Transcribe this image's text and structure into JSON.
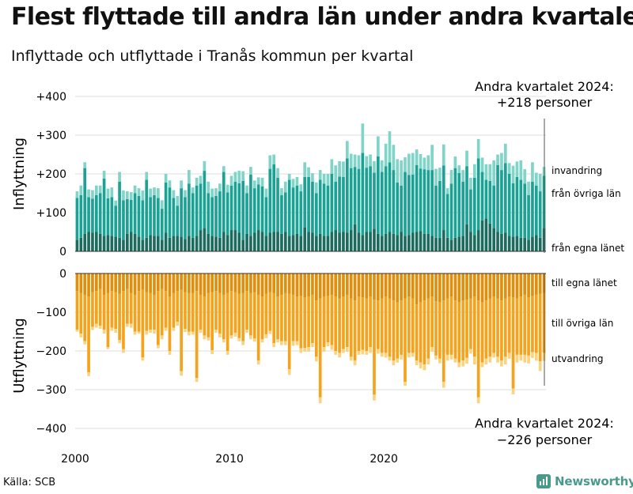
{
  "header": {
    "title": "Flest flyttade till andra län under andra kvartalet",
    "subtitle": "Inflyttade och utflyttade i Tranås kommun per kvartal"
  },
  "footer": {
    "source": "Källa: SCB",
    "brand": "Newsworthy",
    "brand_icon": "newsworthy-logo-icon"
  },
  "colors": {
    "in_egna": "#1b6b5e",
    "in_ovriga": "#1aa394",
    "in_invandring": "#80d4c8",
    "ut_egna": "#e08e0b",
    "ut_ovriga": "#f5a31c",
    "ut_utvandring": "#fbd37d",
    "grid": "#dddddd",
    "axis": "#333333"
  },
  "chart_data": [
    {
      "type": "bar",
      "stacked": true,
      "panel": "inflyttning",
      "ylabel": "Inflyttning",
      "ylim": [
        0,
        420
      ],
      "yticks": [
        0,
        100,
        200,
        300,
        400
      ],
      "ytick_labels": [
        "0",
        "+100",
        "+200",
        "+300",
        "+400"
      ],
      "xticks": [
        "2000",
        "2010",
        "2020"
      ],
      "grid": true,
      "annotation": {
        "line1": "Andra kvartalet 2024:",
        "line2": "+218 personer"
      },
      "series": [
        {
          "name": "från egna länet",
          "values": [
            30,
            35,
            45,
            50,
            48,
            50,
            45,
            40,
            42,
            40,
            38,
            35,
            30,
            45,
            50,
            45,
            38,
            30,
            35,
            42,
            40,
            40,
            30,
            48,
            35,
            40,
            40,
            38,
            32,
            40,
            35,
            40,
            55,
            60,
            45,
            40,
            38,
            35,
            50,
            42,
            55,
            55,
            48,
            30,
            45,
            40,
            48,
            55,
            50,
            40,
            48,
            50,
            50,
            45,
            50,
            40,
            42,
            45,
            40,
            62,
            50,
            48,
            40,
            45,
            40,
            40,
            50,
            55,
            48,
            50,
            48,
            55,
            70,
            48,
            42,
            50,
            50,
            58,
            45,
            40,
            45,
            50,
            45,
            42,
            50,
            40,
            42,
            48,
            50,
            52,
            45,
            45,
            40,
            35,
            35,
            55,
            35,
            30,
            35,
            38,
            40,
            70,
            50,
            42,
            55,
            80,
            85,
            72,
            60,
            50,
            45,
            48,
            40,
            38,
            40,
            35,
            35,
            30,
            38,
            42,
            35,
            60
          ]
        },
        {
          "name": "från övriga län",
          "values": [
            108,
            110,
            170,
            90,
            88,
            95,
            105,
            148,
            95,
            100,
            80,
            145,
            102,
            90,
            83,
            105,
            105,
            102,
            150,
            98,
            105,
            98,
            80,
            130,
            130,
            98,
            78,
            125,
            108,
            135,
            115,
            130,
            120,
            148,
            105,
            100,
            105,
            120,
            155,
            110,
            115,
            125,
            128,
            152,
            105,
            158,
            115,
            118,
            118,
            100,
            165,
            175,
            140,
            100,
            102,
            145,
            123,
            125,
            115,
            130,
            142,
            132,
            110,
            140,
            135,
            130,
            150,
            125,
            145,
            142,
            192,
            160,
            148,
            165,
            212,
            166,
            170,
            145,
            200,
            165,
            175,
            180,
            165,
            136,
            120,
            165,
            155,
            150,
            173,
            162,
            167,
            165,
            170,
            135,
            147,
            167,
            113,
            145,
            180,
            164,
            140,
            150,
            110,
            148,
            185,
            125,
            100,
            110,
            110,
            173,
            165,
            180,
            160,
            138,
            152,
            150,
            140,
            115,
            142,
            128,
            120,
            135
          ]
        },
        {
          "name": "invandring",
          "values": [
            17,
            25,
            15,
            20,
            22,
            25,
            20,
            20,
            25,
            25,
            13,
            25,
            25,
            20,
            20,
            20,
            20,
            25,
            20,
            22,
            20,
            25,
            22,
            22,
            18,
            20,
            25,
            20,
            18,
            35,
            15,
            20,
            20,
            25,
            30,
            22,
            20,
            20,
            15,
            20,
            25,
            25,
            32,
            25,
            20,
            20,
            20,
            18,
            22,
            22,
            35,
            25,
            25,
            18,
            28,
            15,
            22,
            22,
            18,
            38,
            25,
            22,
            28,
            25,
            25,
            30,
            38,
            42,
            40,
            40,
            45,
            37,
            32,
            35,
            76,
            30,
            30,
            30,
            52,
            30,
            58,
            80,
            65,
            60,
            65,
            38,
            55,
            56,
            40,
            37,
            30,
            38,
            65,
            43,
            34,
            54,
            15,
            35,
            30,
            20,
            30,
            40,
            30,
            35,
            50,
            37,
            40,
            43,
            65,
            27,
            44,
            50,
            28,
            45,
            40,
            50,
            37,
            35,
            50,
            33,
            45,
            23
          ]
        }
      ]
    },
    {
      "type": "bar",
      "stacked": true,
      "panel": "utflyttning",
      "ylabel": "Utflyttning",
      "ylim": [
        -420,
        0
      ],
      "yticks": [
        0,
        -100,
        -200,
        -300,
        -400
      ],
      "ytick_labels": [
        "0",
        "−100",
        "−200",
        "−300",
        "−400"
      ],
      "xticks": [
        "2000",
        "2010",
        "2020"
      ],
      "grid": true,
      "annotation": {
        "line1": "Andra kvartalet 2024:",
        "line2": "−226 personer"
      },
      "series": [
        {
          "name": "till egna länet",
          "values": [
            -45,
            -50,
            -55,
            -60,
            -48,
            -45,
            -40,
            -55,
            -50,
            -45,
            -48,
            -52,
            -45,
            -40,
            -50,
            -55,
            -45,
            -42,
            -48,
            -50,
            -55,
            -45,
            -40,
            -45,
            -60,
            -50,
            -45,
            -42,
            -48,
            -50,
            -50,
            -45,
            -55,
            -60,
            -50,
            -48,
            -45,
            -50,
            -55,
            -50,
            -45,
            -48,
            -52,
            -50,
            -45,
            -50,
            -48,
            -55,
            -60,
            -52,
            -48,
            -50,
            -60,
            -55,
            -50,
            -52,
            -55,
            -60,
            -58,
            -62,
            -60,
            -55,
            -70,
            -65,
            -60,
            -58,
            -55,
            -60,
            -65,
            -60,
            -55,
            -65,
            -70,
            -60,
            -62,
            -65,
            -60,
            -68,
            -70,
            -65,
            -60,
            -65,
            -70,
            -75,
            -70,
            -65,
            -60,
            -65,
            -80,
            -75,
            -70,
            -65,
            -60,
            -72,
            -75,
            -70,
            -65,
            -60,
            -70,
            -75,
            -70,
            -68,
            -65,
            -60,
            -70,
            -75,
            -70,
            -65,
            -60,
            -65,
            -70,
            -65,
            -60,
            -62,
            -65,
            -60,
            -55,
            -62,
            -58,
            -55,
            -52,
            -50
          ]
        },
        {
          "name": "till övriga län",
          "values": [
            -100,
            -105,
            -120,
            -195,
            -90,
            -85,
            -95,
            -90,
            -140,
            -95,
            -95,
            -120,
            -150,
            -90,
            -80,
            -95,
            -105,
            -175,
            -100,
            -95,
            -90,
            -140,
            -120,
            -95,
            -140,
            -90,
            -80,
            -210,
            -95,
            -100,
            -100,
            -225,
            -90,
            -100,
            -115,
            -150,
            -100,
            -105,
            -115,
            -150,
            -115,
            -105,
            -115,
            -125,
            -100,
            -110,
            -120,
            -170,
            -110,
            -105,
            -100,
            -130,
            -110,
            -120,
            -125,
            -195,
            -120,
            -115,
            -135,
            -130,
            -130,
            -125,
            -145,
            -255,
            -130,
            -120,
            -130,
            -140,
            -140,
            -135,
            -135,
            -150,
            -155,
            -140,
            -135,
            -135,
            -130,
            -245,
            -125,
            -140,
            -145,
            -150,
            -155,
            -145,
            -140,
            -215,
            -145,
            -140,
            -145,
            -155,
            -165,
            -155,
            -130,
            -140,
            -145,
            -210,
            -145,
            -150,
            -150,
            -155,
            -155,
            -150,
            -130,
            -155,
            -250,
            -155,
            -150,
            -150,
            -145,
            -150,
            -155,
            -150,
            -145,
            -235,
            -145,
            -150,
            -155,
            -150,
            -145,
            -150,
            -175,
            -155
          ]
        },
        {
          "name": "utvandring",
          "values": [
            -5,
            -10,
            -8,
            -10,
            -8,
            -10,
            -8,
            -10,
            -5,
            -8,
            -10,
            -8,
            -10,
            -8,
            -10,
            -8,
            -5,
            -8,
            -10,
            -8,
            -10,
            -8,
            -10,
            -8,
            -10,
            -8,
            -10,
            -12,
            -8,
            -10,
            -8,
            -10,
            -8,
            -10,
            -8,
            -10,
            -8,
            -10,
            -8,
            -10,
            -8,
            -10,
            -8,
            -10,
            -8,
            -10,
            -8,
            -10,
            -8,
            -10,
            -8,
            -10,
            -8,
            -10,
            -10,
            -15,
            -12,
            -10,
            -12,
            -10,
            -12,
            -10,
            -12,
            -15,
            -12,
            -10,
            -12,
            -10,
            -12,
            -10,
            -12,
            -10,
            -12,
            -10,
            -12,
            -10,
            -15,
            -15,
            -12,
            -10,
            -12,
            -10,
            -12,
            -10,
            -12,
            -10,
            -12,
            -10,
            -12,
            -15,
            -15,
            -15,
            -12,
            -10,
            -12,
            -15,
            -15,
            -12,
            -10,
            -12,
            -15,
            -15,
            -12,
            -20,
            -15,
            -12,
            -15,
            -15,
            -12,
            -15,
            -15,
            -20,
            -15,
            -15,
            -20,
            -15,
            -20,
            -20,
            -15,
            -20,
            -25,
            -21
          ]
        }
      ]
    }
  ]
}
